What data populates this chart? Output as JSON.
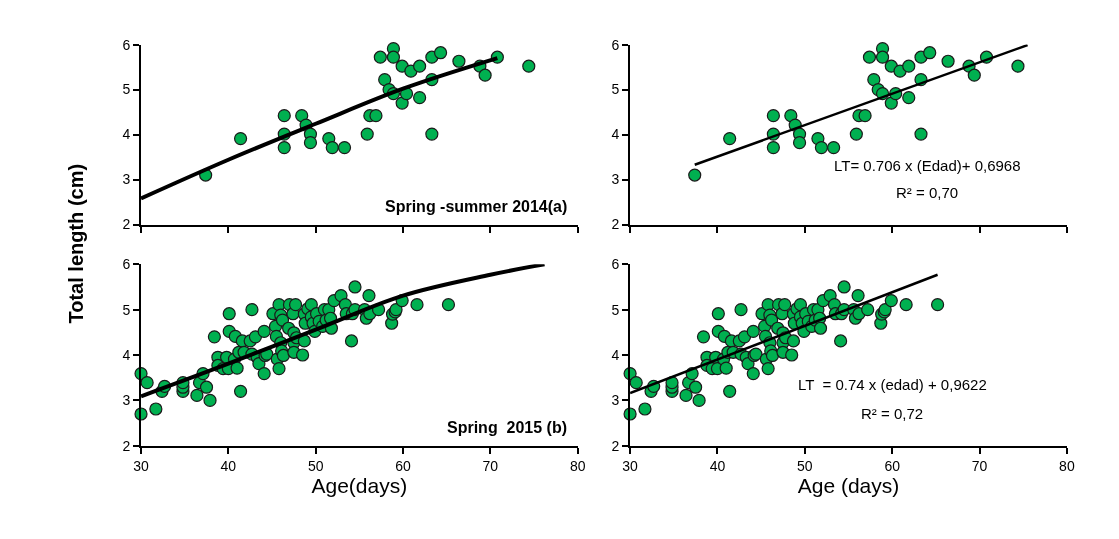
{
  "chart_data": [
    {
      "type": "scatter",
      "marker": "circle",
      "xlim": [
        30,
        80
      ],
      "xticks": [
        30,
        40,
        50,
        60,
        70,
        80
      ],
      "ylim": [
        2,
        6
      ],
      "yticks": [
        2,
        3,
        4,
        5,
        6
      ],
      "tick_labels": "y",
      "ylabel": "Total length (cm)",
      "annotations": [
        "Spring -summer 2014(a)"
      ],
      "series": [
        {
          "color": "#00b050",
          "x": [
            37.4,
            41.4,
            46.4,
            46.4,
            46.4,
            48.4,
            48.9,
            49.4,
            49.4,
            51.5,
            51.9,
            53.3,
            55.9,
            56.2,
            56.9,
            57.4,
            57.9,
            58.4,
            58.9,
            58.9,
            58.9,
            59.9,
            59.9,
            60.4,
            60.9,
            61.9,
            61.9,
            63.3,
            63.3,
            63.3,
            64.3,
            66.4,
            68.8,
            69.4,
            70.8,
            74.4
          ],
          "values": [
            3.1,
            3.91,
            4.42,
            4.01,
            3.71,
            4.42,
            4.21,
            4.01,
            3.82,
            3.91,
            3.71,
            3.71,
            4.01,
            4.42,
            4.42,
            5.72,
            5.22,
            5.0,
            5.91,
            5.72,
            4.91,
            5.52,
            4.7,
            4.91,
            5.41,
            5.52,
            4.82,
            5.72,
            5.22,
            4.01,
            5.82,
            5.63,
            5.52,
            5.32,
            5.72,
            5.52
          ]
        },
        {
          "type": "line",
          "marker": "none",
          "color": "#000000",
          "x": [
            30,
            40,
            50,
            60,
            70.8
          ],
          "values": [
            2.58,
            3.44,
            4.24,
            5.02,
            5.7
          ]
        }
      ]
    },
    {
      "type": "scatter",
      "marker": "circle",
      "xlim": [
        30,
        80
      ],
      "xticks": [
        30,
        40,
        50,
        60,
        70,
        80
      ],
      "ylim": [
        2,
        6
      ],
      "yticks": [
        2,
        3,
        4,
        5,
        6
      ],
      "tick_labels": "y",
      "annotations": [
        "LT= 0.706 x (Edad)+ 0,6968",
        "R² = 0,70"
      ],
      "series": [
        {
          "color": "#00b050",
          "x": [
            37.4,
            41.4,
            46.4,
            46.4,
            46.4,
            48.4,
            48.9,
            49.4,
            49.4,
            51.5,
            51.9,
            53.3,
            55.9,
            56.2,
            56.9,
            57.4,
            57.9,
            58.4,
            58.9,
            58.9,
            58.9,
            59.9,
            59.9,
            60.4,
            60.9,
            61.9,
            61.9,
            63.3,
            63.3,
            63.3,
            64.3,
            66.4,
            68.8,
            69.4,
            70.8,
            74.4
          ],
          "values": [
            3.1,
            3.91,
            4.42,
            4.01,
            3.71,
            4.42,
            4.21,
            4.01,
            3.82,
            3.91,
            3.71,
            3.71,
            4.01,
            4.42,
            4.42,
            5.72,
            5.22,
            5.0,
            5.91,
            5.72,
            4.91,
            5.52,
            4.7,
            4.91,
            5.41,
            5.52,
            4.82,
            5.72,
            5.22,
            4.01,
            5.82,
            5.63,
            5.52,
            5.32,
            5.72,
            5.52
          ]
        },
        {
          "type": "line",
          "marker": "none",
          "color": "#000000",
          "x": [
            37.4,
            75.5
          ],
          "values": [
            3.33,
            5.99
          ]
        }
      ]
    },
    {
      "type": "scatter",
      "marker": "circle",
      "xlim": [
        30,
        80
      ],
      "xticks": [
        30,
        40,
        50,
        60,
        70,
        80
      ],
      "ylim": [
        2,
        6
      ],
      "yticks": [
        2,
        3,
        4,
        5,
        6
      ],
      "xlabel": "Age(days)",
      "annotations": [
        "Spring  2015 (b)"
      ],
      "series": [
        {
          "color": "#00b050",
          "x": [
            30.0,
            30.0,
            30.7,
            31.7,
            32.4,
            32.7,
            34.8,
            34.8,
            34.8,
            36.4,
            36.7,
            37.1,
            37.5,
            37.9,
            38.4,
            38.8,
            38.8,
            39.4,
            39.8,
            40.0,
            40.1,
            40.1,
            40.7,
            40.8,
            41.0,
            41.2,
            41.4,
            41.6,
            41.8,
            42.5,
            42.7,
            42.7,
            43.1,
            43.3,
            43.5,
            44.1,
            44.1,
            44.2,
            44.4,
            45.1,
            45.4,
            45.5,
            45.6,
            45.8,
            45.8,
            46.0,
            46.0,
            46.1,
            46.2,
            46.3,
            46.9,
            47.0,
            47.4,
            47.5,
            47.5,
            47.5,
            47.7,
            47.8,
            48.5,
            48.7,
            48.7,
            48.8,
            49.1,
            49.5,
            49.5,
            49.7,
            49.9,
            50.1,
            50.4,
            50.8,
            51.0,
            51.2,
            51.5,
            51.7,
            51.8,
            52.1,
            52.9,
            53.4,
            53.5,
            54.1,
            54.2,
            54.5,
            54.5,
            55.6,
            55.8,
            56.1,
            56.2,
            57.2,
            58.7,
            58.8,
            59.1,
            59.2,
            59.9,
            61.6,
            65.2
          ],
          "values": [
            3.59,
            2.7,
            3.39,
            2.81,
            3.2,
            3.31,
            3.2,
            3.29,
            3.39,
            3.11,
            3.39,
            3.59,
            3.29,
            3.0,
            4.4,
            3.95,
            3.77,
            3.7,
            3.95,
            3.7,
            4.91,
            4.52,
            3.91,
            4.41,
            3.71,
            4.06,
            3.2,
            4.31,
            4.06,
            4.31,
            5.0,
            4.02,
            4.4,
            3.95,
            3.81,
            4.52,
            3.59,
            3.99,
            4.02,
            4.91,
            4.63,
            4.41,
            3.91,
            3.7,
            5.11,
            4.88,
            4.27,
            4.09,
            4.77,
            3.99,
            4.59,
            5.11,
            4.91,
            4.49,
            4.27,
            4.06,
            5.11,
            4.38,
            4.0,
            4.31,
            4.9,
            4.7,
            5.02,
            5.11,
            4.84,
            4.7,
            4.52,
            4.91,
            4.74,
            4.63,
            5.0,
            4.77,
            5.0,
            4.81,
            4.59,
            5.2,
            5.31,
            5.11,
            4.91,
            4.31,
            4.91,
            5.5,
            5.0,
            5.0,
            4.81,
            5.31,
            4.91,
            5.0,
            4.7,
            4.9,
            4.95,
            5.0,
            5.2,
            5.11,
            5.11
          ]
        },
        {
          "type": "line",
          "marker": "none",
          "color": "#000000",
          "x": [
            30,
            40,
            50,
            60,
            70,
            76.2
          ],
          "values": [
            3.09,
            3.81,
            4.56,
            5.31,
            5.77,
            6.0
          ]
        }
      ]
    },
    {
      "type": "scatter",
      "marker": "circle",
      "xlim": [
        30,
        80
      ],
      "xticks": [
        30,
        40,
        50,
        60,
        70,
        80
      ],
      "ylim": [
        2,
        6
      ],
      "yticks": [
        2,
        3,
        4,
        5,
        6
      ],
      "xlabel": "Age (days)",
      "annotations": [
        "LT  = 0.74 x (edad) + 0,9622",
        "R² = 0,72"
      ],
      "series": [
        {
          "color": "#00b050",
          "x": [
            30.0,
            30.0,
            30.7,
            31.7,
            32.4,
            32.7,
            34.8,
            34.8,
            34.8,
            36.4,
            36.7,
            37.1,
            37.5,
            37.9,
            38.4,
            38.8,
            38.8,
            39.4,
            39.8,
            40.0,
            40.1,
            40.1,
            40.7,
            40.8,
            41.0,
            41.2,
            41.4,
            41.6,
            41.8,
            42.5,
            42.7,
            42.7,
            43.1,
            43.3,
            43.5,
            44.1,
            44.1,
            44.2,
            44.4,
            45.1,
            45.4,
            45.5,
            45.6,
            45.8,
            45.8,
            46.0,
            46.0,
            46.1,
            46.2,
            46.3,
            46.9,
            47.0,
            47.4,
            47.5,
            47.5,
            47.5,
            47.7,
            47.8,
            48.5,
            48.7,
            48.7,
            48.8,
            49.1,
            49.5,
            49.5,
            49.7,
            49.9,
            50.1,
            50.4,
            50.8,
            51.0,
            51.2,
            51.5,
            51.7,
            51.8,
            52.1,
            52.9,
            53.4,
            53.5,
            54.1,
            54.2,
            54.5,
            54.5,
            55.6,
            55.8,
            56.1,
            56.2,
            57.2,
            58.7,
            58.8,
            59.1,
            59.2,
            59.9,
            61.6,
            65.2
          ],
          "values": [
            3.59,
            2.7,
            3.39,
            2.81,
            3.2,
            3.31,
            3.2,
            3.29,
            3.39,
            3.11,
            3.39,
            3.59,
            3.29,
            3.0,
            4.4,
            3.95,
            3.77,
            3.7,
            3.95,
            3.7,
            4.91,
            4.52,
            3.91,
            4.41,
            3.71,
            4.06,
            3.2,
            4.31,
            4.06,
            4.31,
            5.0,
            4.02,
            4.4,
            3.95,
            3.81,
            4.52,
            3.59,
            3.99,
            4.02,
            4.91,
            4.63,
            4.41,
            3.91,
            3.7,
            5.11,
            4.88,
            4.27,
            4.09,
            4.77,
            3.99,
            4.59,
            5.11,
            4.91,
            4.49,
            4.27,
            4.06,
            5.11,
            4.38,
            4.0,
            4.31,
            4.9,
            4.7,
            5.02,
            5.11,
            4.84,
            4.7,
            4.52,
            4.91,
            4.74,
            4.63,
            5.0,
            4.77,
            5.0,
            4.81,
            4.59,
            5.2,
            5.31,
            5.11,
            4.91,
            4.31,
            4.91,
            5.5,
            5.0,
            5.0,
            4.81,
            5.31,
            4.91,
            5.0,
            4.7,
            4.9,
            4.95,
            5.0,
            5.2,
            5.11,
            5.11
          ]
        },
        {
          "type": "line",
          "marker": "none",
          "color": "#000000",
          "x": [
            30,
            65.2
          ],
          "values": [
            3.16,
            5.77
          ]
        }
      ]
    }
  ]
}
